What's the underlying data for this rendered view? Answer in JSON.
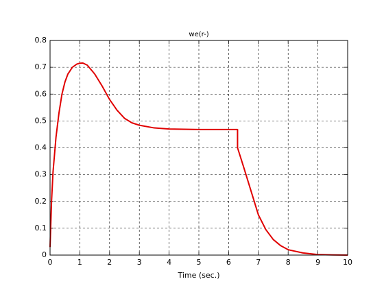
{
  "chart_data": {
    "type": "line",
    "title": "we(r-)",
    "x_label": "Time (sec.)",
    "x": [
      0,
      0.05,
      0.1,
      0.2,
      0.3,
      0.4,
      0.5,
      0.6,
      0.75,
      0.9,
      1.0,
      1.1,
      1.25,
      1.5,
      1.75,
      2.0,
      2.25,
      2.5,
      2.75,
      3.0,
      3.5,
      4.0,
      5.0,
      6.0,
      6.3,
      6.3,
      6.5,
      6.75,
      7.0,
      7.25,
      7.5,
      7.75,
      8.0,
      8.5,
      9.0,
      9.5,
      10.0
    ],
    "series": [
      {
        "name": "we(r-)",
        "color": "#e00000",
        "values": [
          0.03,
          0.2,
          0.31,
          0.44,
          0.53,
          0.6,
          0.645,
          0.675,
          0.7,
          0.712,
          0.715,
          0.716,
          0.708,
          0.675,
          0.63,
          0.58,
          0.54,
          0.51,
          0.493,
          0.484,
          0.474,
          0.47,
          0.468,
          0.468,
          0.468,
          0.4,
          0.33,
          0.24,
          0.15,
          0.095,
          0.058,
          0.035,
          0.02,
          0.008,
          0.002,
          0.0005,
          0
        ]
      }
    ],
    "xlim": [
      0,
      10
    ],
    "xticks": [
      0,
      1,
      2,
      3,
      4,
      5,
      6,
      7,
      8,
      9,
      10
    ],
    "ylim": [
      0,
      0.8
    ],
    "yticks": [
      0,
      0.1,
      0.2,
      0.3,
      0.4,
      0.5,
      0.6,
      0.7,
      0.8
    ],
    "grid": true
  }
}
